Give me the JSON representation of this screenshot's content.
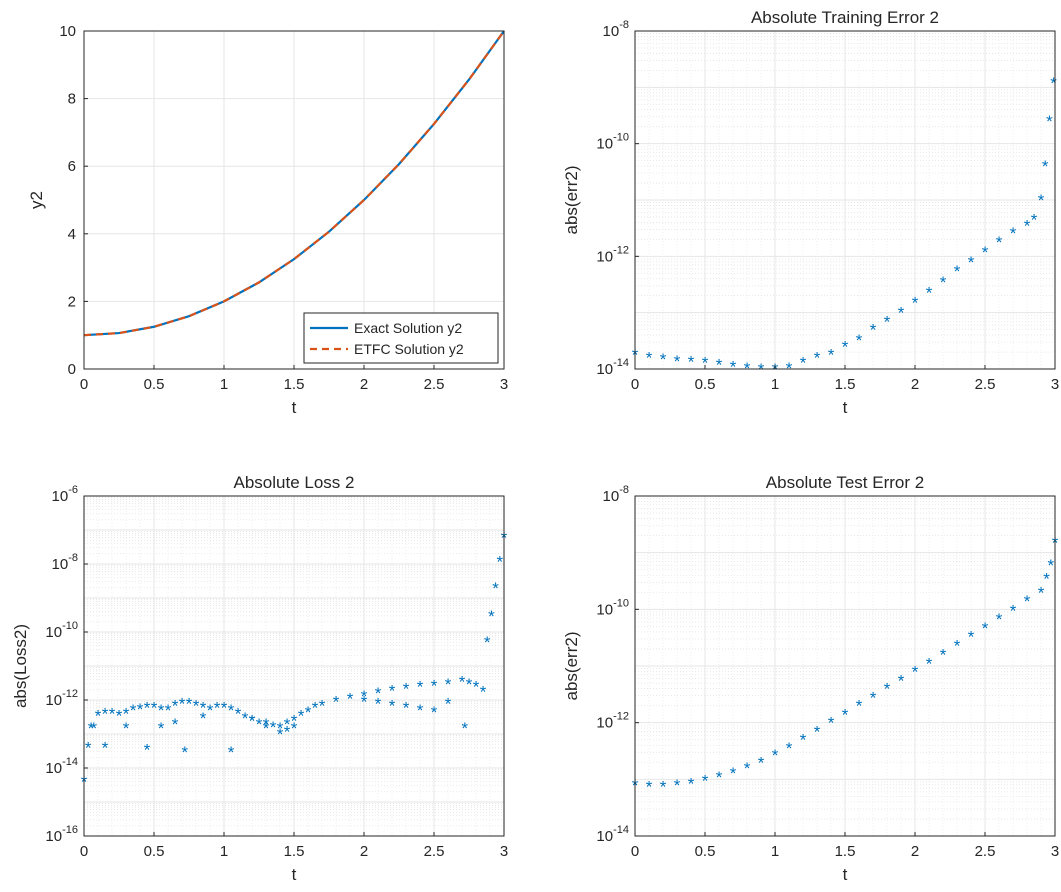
{
  "chart_data": [
    {
      "type": "line",
      "title": "",
      "xlabel": "t",
      "ylabel": "y2",
      "xlim": [
        0,
        3
      ],
      "ylim": [
        0,
        10
      ],
      "yscale": "linear",
      "grid": true,
      "xticks": [
        "0",
        "0.5",
        "1",
        "1.5",
        "2",
        "2.5",
        "3"
      ],
      "yticks": [
        "0",
        "2",
        "4",
        "6",
        "8",
        "10"
      ],
      "legend_position": "bottom-right",
      "series": [
        {
          "name": "Exact Solution y2",
          "color": "#0072BD",
          "style": "solid",
          "x": [
            0,
            0.25,
            0.5,
            0.75,
            1,
            1.25,
            1.5,
            1.75,
            2,
            2.25,
            2.5,
            2.75,
            3
          ],
          "values": [
            1,
            1.0625,
            1.25,
            1.5625,
            2,
            2.5625,
            3.25,
            4.0625,
            5,
            6.0625,
            7.25,
            8.5625,
            10
          ]
        },
        {
          "name": "ETFC Solution y2",
          "color": "#D95319",
          "style": "dashed",
          "x": [
            0,
            0.25,
            0.5,
            0.75,
            1,
            1.25,
            1.5,
            1.75,
            2,
            2.25,
            2.5,
            2.75,
            3
          ],
          "values": [
            1,
            1.0625,
            1.25,
            1.5625,
            2,
            2.5625,
            3.25,
            4.0625,
            5,
            6.0625,
            7.25,
            8.5625,
            10
          ]
        }
      ]
    },
    {
      "type": "scatter",
      "title": "Absolute Training Error 2",
      "xlabel": "t",
      "ylabel": "abs(err2)",
      "xlim": [
        0,
        3
      ],
      "ylim": [
        1e-14,
        1e-08
      ],
      "yscale": "log",
      "grid": true,
      "xticks": [
        "0",
        "0.5",
        "1",
        "1.5",
        "2",
        "2.5",
        "3"
      ],
      "yticks": [
        {
          "base": "10",
          "exp": "-14"
        },
        {
          "base": "10",
          "exp": "-12"
        },
        {
          "base": "10",
          "exp": "-10"
        },
        {
          "base": "10",
          "exp": "-8"
        }
      ],
      "marker": "*",
      "color": "#0072BD",
      "series": [
        {
          "x": [
            0,
            0.1,
            0.2,
            0.3,
            0.4,
            0.5,
            0.6,
            0.7,
            0.8,
            0.9,
            1.0,
            1.1,
            1.2,
            1.3,
            1.4,
            1.5,
            1.6,
            1.7,
            1.8,
            1.9,
            2.0,
            2.1,
            2.2,
            2.3,
            2.4,
            2.5,
            2.6,
            2.7,
            2.8,
            2.85,
            2.9,
            2.93,
            2.96,
            2.99
          ],
          "values": [
            1.8e-14,
            1.6e-14,
            1.5e-14,
            1.4e-14,
            1.35e-14,
            1.3e-14,
            1.2e-14,
            1.1e-14,
            1.05e-14,
            1e-14,
            1e-14,
            1.05e-14,
            1.3e-14,
            1.6e-14,
            1.8e-14,
            2.5e-14,
            3.3e-14,
            5e-14,
            7e-14,
            1e-13,
            1.5e-13,
            2.3e-13,
            3.5e-13,
            5.5e-13,
            8e-13,
            1.2e-12,
            1.8e-12,
            2.6e-12,
            3.5e-12,
            4.5e-12,
            1e-11,
            4e-11,
            2.5e-10,
            1.2e-09
          ]
        }
      ]
    },
    {
      "type": "scatter",
      "title": "Absolute Loss 2",
      "xlabel": "t",
      "ylabel": "abs(Loss2)",
      "xlim": [
        0,
        3
      ],
      "ylim": [
        1e-16,
        1e-06
      ],
      "yscale": "log",
      "grid": true,
      "xticks": [
        "0",
        "0.5",
        "1",
        "1.5",
        "2",
        "2.5",
        "3"
      ],
      "yticks": [
        {
          "base": "10",
          "exp": "-16"
        },
        {
          "base": "10",
          "exp": "-14"
        },
        {
          "base": "10",
          "exp": "-12"
        },
        {
          "base": "10",
          "exp": "-10"
        },
        {
          "base": "10",
          "exp": "-8"
        },
        {
          "base": "10",
          "exp": "-6"
        }
      ],
      "marker": "*",
      "color": "#0072BD",
      "series": [
        {
          "x": [
            0,
            0.03,
            0.07,
            0.1,
            0.15,
            0.2,
            0.25,
            0.3,
            0.35,
            0.4,
            0.45,
            0.5,
            0.55,
            0.6,
            0.65,
            0.7,
            0.75,
            0.8,
            0.85,
            0.9,
            0.95,
            1.0,
            1.05,
            1.1,
            1.15,
            1.2,
            1.25,
            1.3,
            1.35,
            1.4,
            1.45,
            1.5,
            1.55,
            1.6,
            1.65,
            1.7,
            1.8,
            1.9,
            2.0,
            2.1,
            2.2,
            2.3,
            2.4,
            2.5,
            2.6,
            2.7,
            2.75,
            2.8,
            2.85,
            2.88,
            2.91,
            2.94,
            2.97,
            3.0
          ],
          "values": [
            4e-15,
            4e-14,
            1.5e-13,
            3.5e-13,
            4e-13,
            4e-13,
            3.5e-13,
            4e-13,
            5e-13,
            5.5e-13,
            6e-13,
            6e-13,
            5e-13,
            5e-13,
            7e-13,
            8e-13,
            8e-13,
            7e-13,
            6e-13,
            5e-13,
            6e-13,
            6e-13,
            5e-13,
            4e-13,
            3e-13,
            2.5e-13,
            2e-13,
            2e-13,
            1.6e-13,
            1.5e-13,
            2e-13,
            2.5e-13,
            3.5e-13,
            4.5e-13,
            6e-13,
            7e-13,
            9e-13,
            1.1e-12,
            1.3e-12,
            1.6e-12,
            1.9e-12,
            2.2e-12,
            2.5e-12,
            2.7e-12,
            3e-12,
            3.5e-12,
            3e-12,
            2.5e-12,
            1.8e-12,
            5e-11,
            3e-10,
            2e-09,
            1.2e-08,
            6e-08
          ]
        },
        {
          "x": [
            0.05,
            0.15,
            0.3,
            0.45,
            0.55,
            0.65,
            0.72,
            0.85,
            1.05,
            1.2,
            1.3,
            1.4,
            1.45,
            1.5,
            2.0,
            2.1,
            2.2,
            2.3,
            2.4,
            2.5,
            2.6,
            2.72
          ],
          "values": [
            1.5e-13,
            4e-14,
            1.5e-13,
            3.5e-14,
            1.5e-13,
            2e-13,
            3e-14,
            3e-13,
            3e-14,
            2.5e-13,
            1.5e-13,
            1e-13,
            1.2e-13,
            1.5e-13,
            9e-13,
            8e-13,
            7e-13,
            6e-13,
            5e-13,
            4.5e-13,
            8e-13,
            1.5e-13
          ]
        }
      ]
    },
    {
      "type": "scatter",
      "title": "Absolute Test Error 2",
      "xlabel": "t",
      "ylabel": "abs(err2)",
      "xlim": [
        0,
        3
      ],
      "ylim": [
        1e-14,
        1e-08
      ],
      "yscale": "log",
      "grid": true,
      "xticks": [
        "0",
        "0.5",
        "1",
        "1.5",
        "2",
        "2.5",
        "3"
      ],
      "yticks": [
        {
          "base": "10",
          "exp": "-14"
        },
        {
          "base": "10",
          "exp": "-12"
        },
        {
          "base": "10",
          "exp": "-10"
        },
        {
          "base": "10",
          "exp": "-8"
        }
      ],
      "marker": "*",
      "color": "#0072BD",
      "series": [
        {
          "x": [
            0,
            0.1,
            0.2,
            0.3,
            0.4,
            0.5,
            0.6,
            0.7,
            0.8,
            0.9,
            1.0,
            1.1,
            1.2,
            1.3,
            1.4,
            1.5,
            1.6,
            1.7,
            1.8,
            1.9,
            2.0,
            2.1,
            2.2,
            2.3,
            2.4,
            2.5,
            2.6,
            2.7,
            2.8,
            2.9,
            2.94,
            2.97,
            3.0
          ],
          "values": [
            8e-14,
            7.5e-14,
            7.5e-14,
            8e-14,
            8.5e-14,
            9.5e-14,
            1.1e-13,
            1.3e-13,
            1.6e-13,
            2e-13,
            2.7e-13,
            3.6e-13,
            5e-13,
            7e-13,
            1e-12,
            1.4e-12,
            2e-12,
            2.8e-12,
            4e-12,
            5.5e-12,
            8e-12,
            1.1e-11,
            1.6e-11,
            2.3e-11,
            3.3e-11,
            4.7e-11,
            6.7e-11,
            9.5e-11,
            1.4e-10,
            2e-10,
            3.5e-10,
            6e-10,
            1.5e-09
          ]
        }
      ]
    }
  ]
}
